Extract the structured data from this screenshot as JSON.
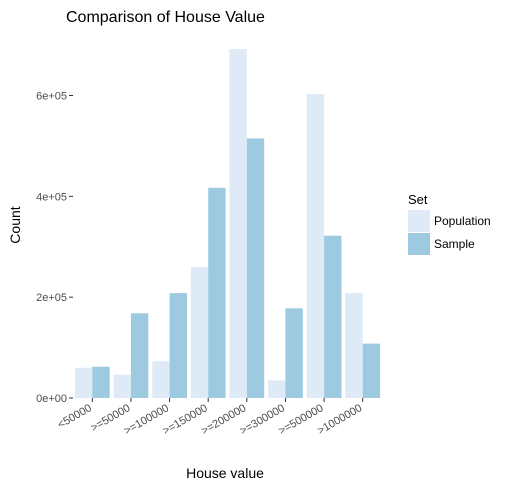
{
  "chart_data": {
    "type": "bar",
    "title": "Comparison of House Value",
    "xlabel": "House value",
    "ylabel": "Count",
    "categories": [
      "<50000",
      ">=50000",
      ">=100000",
      ">=150000",
      ">=200000",
      ">=300000",
      ">=500000",
      ">1000000"
    ],
    "series": [
      {
        "name": "Population",
        "color": "#deebf7",
        "values": [
          60000,
          46000,
          73000,
          260000,
          692000,
          35000,
          603000,
          208000
        ]
      },
      {
        "name": "Sample",
        "color": "#9ecae1",
        "values": [
          62000,
          168000,
          208000,
          417000,
          515000,
          178000,
          322000,
          108000
        ]
      }
    ],
    "yticks": [
      0,
      200000,
      400000,
      600000
    ],
    "ytick_labels": [
      "0e+00",
      "2e+05",
      "4e+05",
      "6e+05"
    ],
    "ylim": [
      0,
      720000
    ],
    "grid": false,
    "legend": {
      "title": "Set",
      "placement": "right"
    }
  }
}
